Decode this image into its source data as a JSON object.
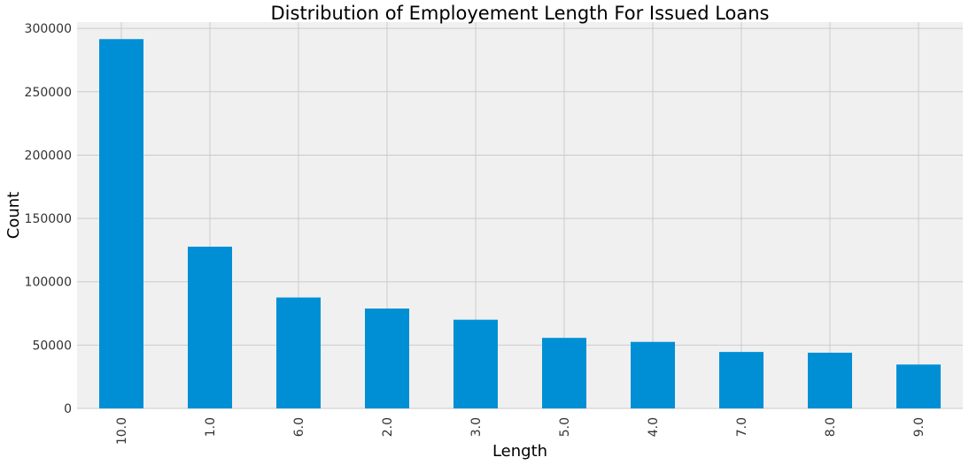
{
  "chart_data": {
    "type": "bar",
    "title": "Distribution of Employement Length For Issued Loans",
    "xlabel": "Length",
    "ylabel": "Count",
    "categories": [
      "10.0",
      "1.0",
      "6.0",
      "2.0",
      "3.0",
      "5.0",
      "4.0",
      "7.0",
      "8.0",
      "9.0"
    ],
    "values": [
      291569,
      127682,
      87568,
      78870,
      70026,
      55704,
      52529,
      44594,
      44000,
      34657
    ],
    "ylim": [
      0,
      305000
    ],
    "yticks": [
      0,
      50000,
      100000,
      150000,
      200000,
      250000,
      300000
    ],
    "ytick_labels": [
      "0",
      "50000",
      "100000",
      "150000",
      "200000",
      "250000",
      "300000"
    ],
    "grid": true,
    "legend": "none",
    "colors": {
      "bar": "#008fd5",
      "plot_background": "#f0f0f0",
      "grid": "#cbcbcb"
    }
  }
}
